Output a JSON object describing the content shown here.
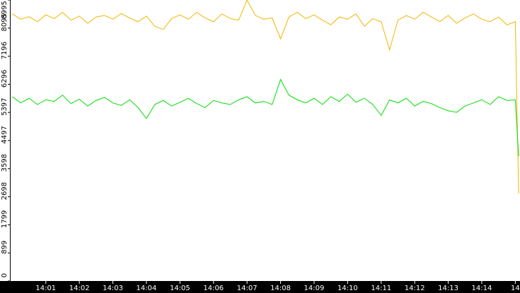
{
  "chart_data": {
    "type": "line",
    "x": [
      0,
      0.25,
      0.5,
      0.75,
      1,
      1.25,
      1.5,
      1.75,
      2,
      2.25,
      2.5,
      2.75,
      3,
      3.25,
      3.5,
      3.75,
      4,
      4.25,
      4.5,
      4.75,
      5,
      5.25,
      5.5,
      5.75,
      6,
      6.25,
      6.5,
      6.75,
      7,
      7.25,
      7.5,
      7.75,
      8,
      8.25,
      8.5,
      8.75,
      9,
      9.25,
      9.5,
      9.75,
      10,
      10.25,
      10.5,
      10.75,
      11,
      11.25,
      11.5,
      11.75,
      12,
      12.25,
      12.5,
      12.75,
      13,
      13.25,
      13.5,
      13.75,
      14,
      14.25,
      14.5,
      14.75,
      15,
      15.1
    ],
    "series": [
      {
        "color": "#f2b500",
        "values": [
          8550,
          8380,
          8460,
          8300,
          8520,
          8400,
          8600,
          8350,
          8480,
          8250,
          8450,
          8500,
          8380,
          8560,
          8420,
          8300,
          8480,
          8150,
          8050,
          8400,
          8520,
          8380,
          8600,
          8420,
          8300,
          8550,
          8400,
          8350,
          8990,
          8500,
          8380,
          8420,
          7750,
          8450,
          8600,
          8400,
          8520,
          8350,
          8200,
          8450,
          8380,
          8550,
          8150,
          8400,
          8300,
          7400,
          8350,
          8500,
          8380,
          8600,
          8450,
          8300,
          8500,
          8250,
          8420,
          8550,
          8380,
          8300,
          8450,
          8200,
          8300,
          2800
        ]
      },
      {
        "color": "#00dd00",
        "values": [
          5900,
          5700,
          5850,
          5650,
          5800,
          5750,
          5950,
          5680,
          5820,
          5600,
          5780,
          5880,
          5700,
          5620,
          5800,
          5550,
          5200,
          5650,
          5780,
          5600,
          5720,
          5850,
          5680,
          5550,
          5780,
          5700,
          5650,
          5800,
          5900,
          5700,
          5750,
          5650,
          6450,
          5950,
          5800,
          5700,
          5850,
          5650,
          5900,
          5750,
          5980,
          5720,
          5850,
          5650,
          5300,
          5800,
          5700,
          5850,
          5600,
          5750,
          5680,
          5550,
          5450,
          5400,
          5600,
          5700,
          5800,
          5650,
          5900,
          5780,
          5800,
          4000
        ]
      }
    ],
    "xlim": [
      -0.05,
      15.14
    ],
    "xticks": [
      {
        "value": 1,
        "label": "14:01"
      },
      {
        "value": 2,
        "label": "14:02"
      },
      {
        "value": 3,
        "label": "14:03"
      },
      {
        "value": 4,
        "label": "14:04"
      },
      {
        "value": 5,
        "label": "14:05"
      },
      {
        "value": 6,
        "label": "14:06"
      },
      {
        "value": 7,
        "label": "14:07"
      },
      {
        "value": 8,
        "label": "14:08"
      },
      {
        "value": 9,
        "label": "14:09"
      },
      {
        "value": 10,
        "label": "14:10"
      },
      {
        "value": 11,
        "label": "14:11"
      },
      {
        "value": 12,
        "label": "14:12"
      },
      {
        "value": 13,
        "label": "14:13"
      },
      {
        "value": 14,
        "label": "14:14"
      },
      {
        "value": 15,
        "label": "14"
      }
    ],
    "ylim": [
      0,
      8995
    ],
    "yticks": [
      0,
      899,
      1799,
      2698,
      3598,
      4497,
      5397,
      6296,
      7196,
      8095,
      8995
    ]
  }
}
